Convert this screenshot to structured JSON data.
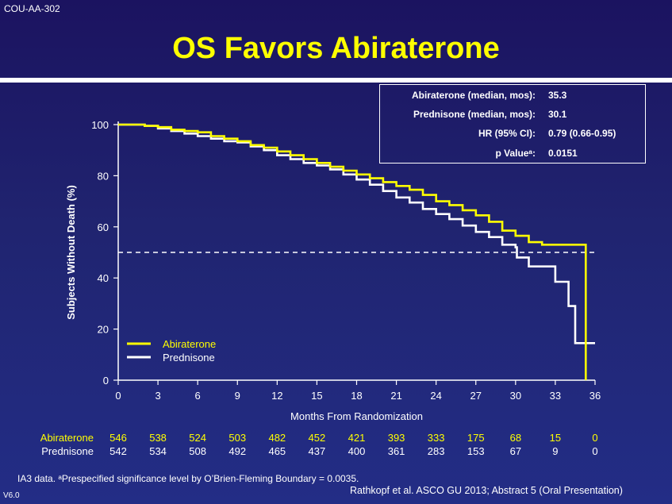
{
  "header": {
    "study_tag": "COU-AA-302",
    "title": "OS Favors Abiraterone"
  },
  "stats": [
    {
      "label": "Abiraterone (median, mos):",
      "value": "35.3"
    },
    {
      "label": "Prednisone (median, mos):",
      "value": "30.1"
    },
    {
      "label": "HR (95% CI):",
      "value": "0.79 (0.66-0.95)"
    },
    {
      "label": "p Valueᵃ:",
      "value": "0.0151"
    }
  ],
  "colors": {
    "abiraterone": "#ffff00",
    "prednisone": "#ffffff",
    "background": "#1f2070"
  },
  "chart_data": {
    "type": "line",
    "title": "",
    "xlabel": "Months From Randomization",
    "ylabel": "Subjects Without Death (%)",
    "xlim": [
      0,
      36
    ],
    "ylim": [
      0,
      100
    ],
    "xticks": [
      "0",
      "3",
      "6",
      "9",
      "12",
      "15",
      "18",
      "21",
      "24",
      "27",
      "30",
      "33",
      "36"
    ],
    "yticks": [
      "0",
      "20",
      "40",
      "60",
      "80",
      "100"
    ],
    "reference_line": {
      "y": 50,
      "style": "dashed"
    },
    "legend_position": "bottom-left",
    "grid": false,
    "step": true,
    "series": [
      {
        "name": "Abiraterone",
        "color": "#ffff00",
        "x": [
          0,
          1,
          2,
          3,
          4,
          5,
          6,
          7,
          8,
          9,
          10,
          11,
          12,
          13,
          14,
          15,
          16,
          17,
          18,
          19,
          20,
          21,
          22,
          23,
          24,
          25,
          26,
          27,
          28,
          29,
          30,
          31,
          32,
          33,
          34,
          35.2,
          35.3
        ],
        "y": [
          100,
          100,
          99.5,
          99,
          98,
          97.5,
          97,
          95.5,
          94.5,
          93.5,
          92,
          91,
          89.5,
          88,
          86.5,
          85,
          83.5,
          82,
          80.5,
          79,
          77.5,
          76,
          74.5,
          72.5,
          70,
          68.5,
          66.5,
          64.5,
          62,
          58.5,
          56.5,
          54,
          53,
          53,
          53,
          53,
          0
        ]
      },
      {
        "name": "Prednisone",
        "color": "#ffffff",
        "x": [
          0,
          1,
          2,
          3,
          4,
          5,
          6,
          7,
          8,
          9,
          10,
          11,
          12,
          13,
          14,
          15,
          16,
          17,
          18,
          19,
          20,
          21,
          22,
          23,
          24,
          25,
          26,
          27,
          28,
          29,
          30,
          30.1,
          31,
          32,
          33,
          34,
          34.5,
          35,
          35.5,
          36
        ],
        "y": [
          100,
          100,
          99.5,
          98.5,
          97.5,
          96.5,
          95.5,
          94.5,
          93.5,
          93,
          91.5,
          90,
          88,
          86.5,
          85,
          84,
          82.5,
          80.5,
          78.5,
          76.5,
          74,
          71.5,
          69.5,
          67,
          65,
          63,
          60.5,
          58,
          56,
          53,
          52,
          48,
          44.5,
          44.5,
          38.5,
          29,
          14.5,
          14.5,
          14.5,
          14.5
        ]
      }
    ],
    "at_risk": {
      "times": [
        "0",
        "3",
        "6",
        "9",
        "12",
        "15",
        "18",
        "21",
        "24",
        "27",
        "30",
        "33",
        "36"
      ],
      "rows": [
        {
          "name": "Abiraterone",
          "values": [
            "546",
            "538",
            "524",
            "503",
            "482",
            "452",
            "421",
            "393",
            "333",
            "175",
            "68",
            "15",
            "0"
          ]
        },
        {
          "name": "Prednisone",
          "values": [
            "542",
            "534",
            "508",
            "492",
            "465",
            "437",
            "400",
            "361",
            "283",
            "153",
            "67",
            "9",
            "0"
          ]
        }
      ]
    }
  },
  "footer": {
    "note": "IA3 data. ᵃPrespecified significance level by O’Brien-Fleming Boundary = 0.0035.",
    "citation": "Rathkopf et al. ASCO GU 2013; Abstract 5 (Oral Presentation)",
    "version": "V6.0"
  }
}
